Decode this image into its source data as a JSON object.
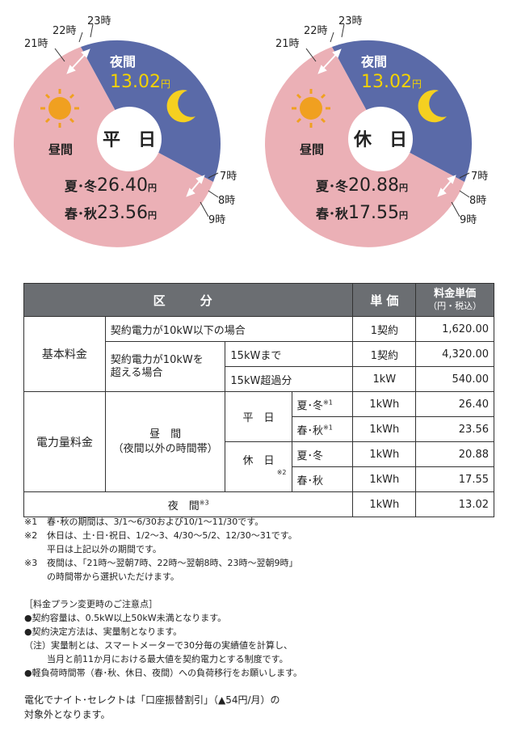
{
  "weekday_pie": {
    "center_label": "平　日",
    "night_label": "夜間",
    "night_price_num": "13.02",
    "night_price_unit": "円",
    "day_label": "昼間",
    "summer_winter_label": "夏･冬",
    "summer_winter_num": "26.40",
    "spring_fall_label": "春･秋",
    "spring_fall_num": "23.56",
    "yen": "円",
    "hours": [
      "21時",
      "22時",
      "23時",
      "7時",
      "8時",
      "9時"
    ]
  },
  "holiday_pie": {
    "center_label": "休　日",
    "night_label": "夜間",
    "night_price_num": "13.02",
    "night_price_unit": "円",
    "day_label": "昼間",
    "summer_winter_label": "夏･冬",
    "summer_winter_num": "20.88",
    "spring_fall_label": "春･秋",
    "spring_fall_num": "17.55",
    "yen": "円",
    "hours": [
      "21時",
      "22時",
      "23時",
      "7時",
      "8時",
      "9時"
    ]
  },
  "colors": {
    "night": "#5a6aa8",
    "day": "#ebb0b6",
    "night_price": "#f3d200",
    "header": "#6b6e72"
  },
  "table": {
    "header": {
      "category": "区　分",
      "unit": "単 価",
      "price_title": "料金単価",
      "price_sub": "（円・税込）"
    },
    "basic": {
      "label": "基本料金",
      "row1_desc": "契約電力が10kW以下の場合",
      "row1_unit": "1契約",
      "row1_price": "1,620.00",
      "row2_desc_a": "契約電力が10kWを",
      "row2_desc_b": "超える場合",
      "row2_sub": "15kWまで",
      "row2_unit": "1契約",
      "row2_price": "4,320.00",
      "row3_sub": "15kW超過分",
      "row3_unit": "1kW",
      "row3_price": "540.00"
    },
    "energy": {
      "label": "電力量料金",
      "day_a": "昼　間",
      "day_b": "（夜間以外の時間帯）",
      "weekday": "平　日",
      "holiday": "休　日",
      "holiday_mark": "※2",
      "sw": "夏･冬",
      "sf": "春･秋",
      "mark1": "※1",
      "unit": "1kWh",
      "p1": "26.40",
      "p2": "23.56",
      "p3": "20.88",
      "p4": "17.55",
      "night": "夜　間",
      "night_mark": "※3",
      "night_price": "13.02"
    }
  },
  "notes": {
    "n1_mark": "※1",
    "n1": "春･秋の期間は、3/1～6/30および10/1～11/30です。",
    "n2_mark": "※2",
    "n2": "休日は、土･日･祝日、1/2～3、4/30～5/2、12/30～31です。",
    "n2b": "平日は上記以外の期間です。",
    "n3_mark": "※3",
    "n3": "夜間は、「21時～翌朝7時、22時～翌朝8時、23時～翌朝9時」",
    "n3b": "の時間帯から選択いただけます。"
  },
  "cautions": {
    "title": "［料金プラン変更時のご注意点］",
    "c1": "●契約容量は、0.5kW以上50kW未満となります。",
    "c2": "●契約決定方法は、実量制となります。",
    "c3": "（注）実量制とは、スマートメーターで30分毎の実績値を計算し、",
    "c3b": "当月と前11か月における最大値を契約電力とする制度です。",
    "c4": "●軽負荷時間帯（春･秋、休日、夜間）への負荷移行をお願いします。"
  },
  "footer": {
    "line1": "電化でナイト･セレクトは「口座振替割引」（▲54円/月）の",
    "line2": "対象外となります。"
  }
}
